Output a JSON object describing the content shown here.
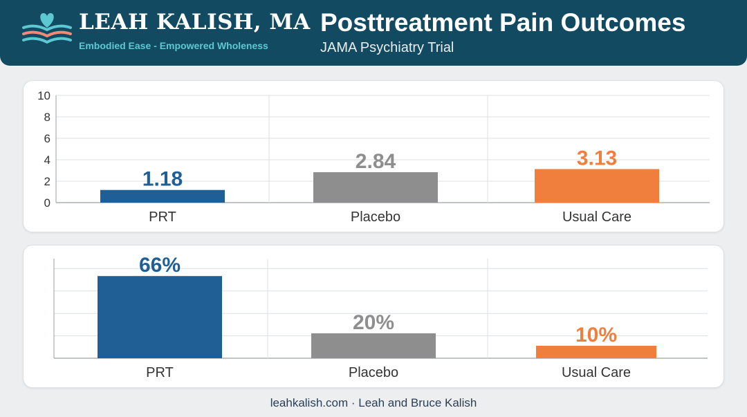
{
  "header": {
    "brand_name": "LEAH KALISH, MA",
    "tagline": "Embodied Ease - Empowered Wholeness",
    "title": "Posttreatment Pain Outcomes",
    "subtitle": "JAMA Psychiatry Trial",
    "logo_icon": "heart-waves-icon"
  },
  "colors": {
    "header_bg": "#124a62",
    "tagline": "#5ec8d2",
    "prt": "#1f5f96",
    "placebo": "#8e8e8e",
    "usual_care": "#f07f3e"
  },
  "chart_data": [
    {
      "type": "bar",
      "categories": [
        "PRT",
        "Placebo",
        "Usual Care"
      ],
      "values": [
        1.18,
        2.84,
        3.13
      ],
      "data_labels": [
        "1.18",
        "2.84",
        "3.13"
      ],
      "title": "",
      "xlabel": "",
      "ylabel": "",
      "ylim": [
        0,
        10
      ],
      "yticks": [
        "0",
        "2",
        "4",
        "6",
        "8",
        "10"
      ],
      "grid": true,
      "legend": "none"
    },
    {
      "type": "bar",
      "categories": [
        "PRT",
        "Placebo",
        "Usual Care"
      ],
      "values": [
        66,
        20,
        10
      ],
      "data_labels": [
        "66%",
        "20%",
        "10%"
      ],
      "title": "",
      "xlabel": "",
      "ylabel": "",
      "ylim": [
        0,
        80
      ],
      "grid": true,
      "legend": "none"
    }
  ],
  "footer": {
    "text": "leahkalish.com · Leah and Bruce Kalish"
  }
}
